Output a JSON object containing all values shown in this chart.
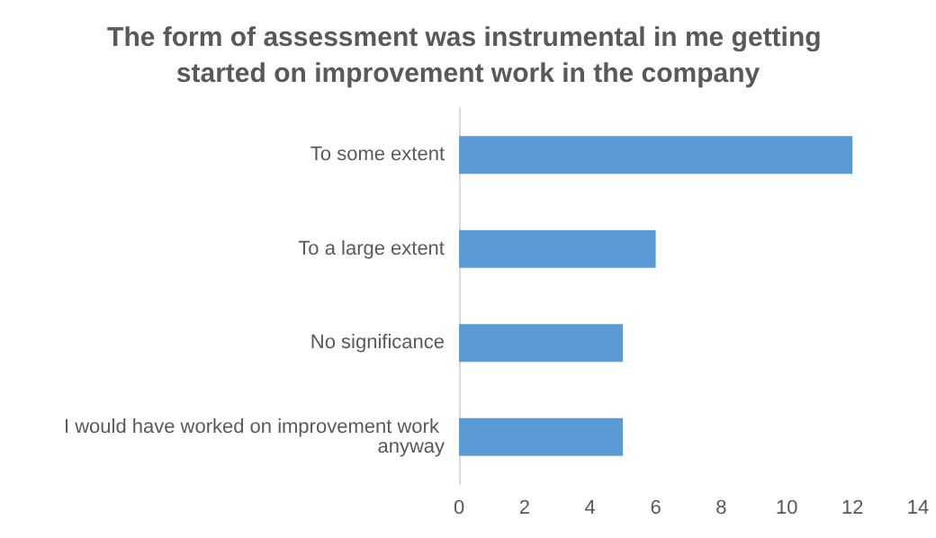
{
  "chart_data": {
    "type": "bar",
    "orientation": "horizontal",
    "title": "The form of assessment was instrumental in me getting started on improvement work in the company",
    "categories": [
      "To some extent",
      "To a large extent",
      "No significance",
      "I would have worked on improvement work anyway"
    ],
    "values": [
      12,
      6,
      5,
      5
    ],
    "color": "#5b9bd5",
    "xlim": [
      0,
      14
    ],
    "xticks": [
      0,
      2,
      4,
      6,
      8,
      10,
      12,
      14
    ],
    "grid": false,
    "legend": false
  }
}
